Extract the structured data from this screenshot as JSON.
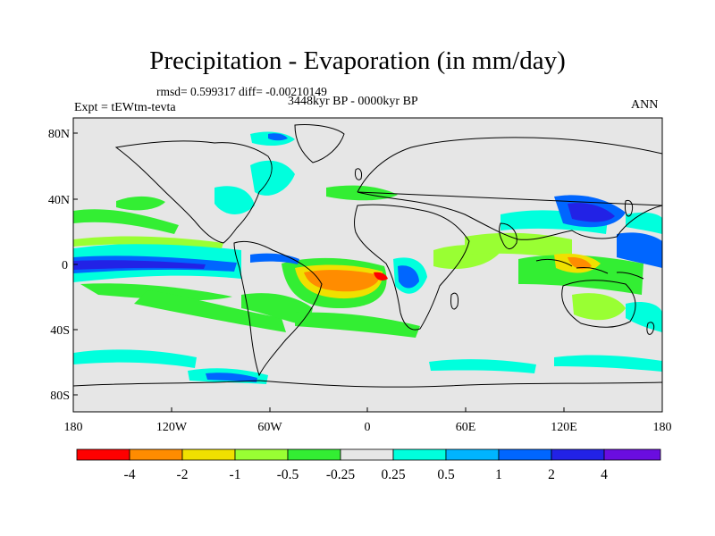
{
  "title": "Precipitation - Evaporation (in mm/day)",
  "stats": {
    "text": "rmsd= 0.599317 diff= -0.00210149"
  },
  "experiment": "Expt = tEWtm-tevta",
  "period": "3448kyr BP - 0000kyr BP",
  "season": "ANN",
  "axes": {
    "y_ticks": [
      "80N",
      "40N",
      "0",
      "40S",
      "80S"
    ],
    "x_ticks": [
      "180",
      "120W",
      "60W",
      "0",
      "60E",
      "120E",
      "180"
    ]
  },
  "colorbar": {
    "colors": [
      "#ff0000",
      "#ff8c00",
      "#f0e000",
      "#99ff33",
      "#33ee33",
      "#e6e6e6",
      "#00ffdd",
      "#00b4ff",
      "#0066ff",
      "#2222e6",
      "#6a0de0",
      "#9b30ff"
    ],
    "labels": [
      "-4",
      "-2",
      "-1",
      "-0.5",
      "-0.25",
      "0.25",
      "0.5",
      "1",
      "2",
      "4"
    ]
  },
  "map_colors": {
    "background": "#e6e6e6",
    "coast": "#000000"
  }
}
